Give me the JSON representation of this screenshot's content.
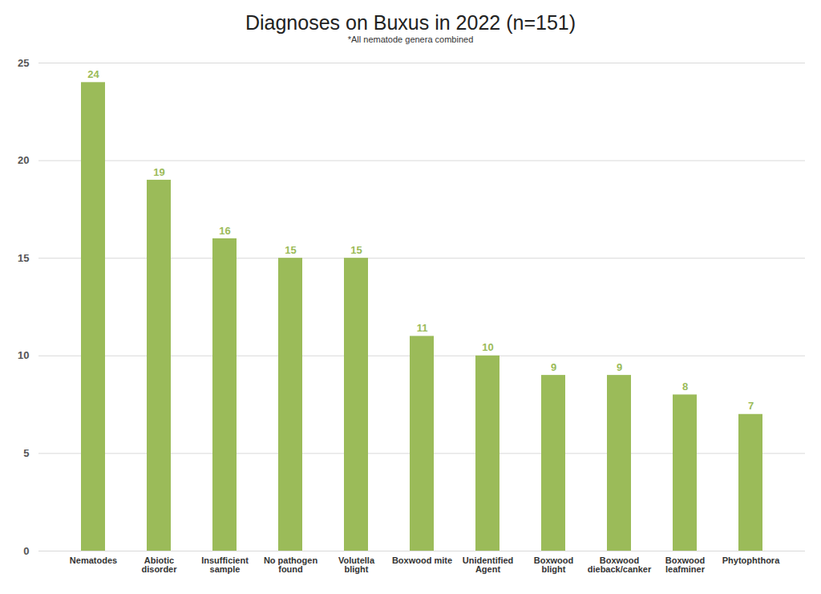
{
  "chart_data": {
    "type": "bar",
    "title": "Diagnoses on Buxus in 2022 (n=151)",
    "subtitle": "*All nematode genera combined",
    "categories": [
      "Nematodes",
      "Abiotic disorder",
      "Insufficient sample",
      "No pathogen found",
      "Volutella blight",
      "Boxwood mite",
      "Unidentified Agent",
      "Boxwood blight",
      "Boxwood dieback/canker",
      "Boxwood leafminer",
      "Phytophthora"
    ],
    "values": [
      24,
      19,
      16,
      15,
      15,
      11,
      10,
      9,
      9,
      8,
      7
    ],
    "color": "#9bbb59",
    "ylim": [
      0,
      25
    ],
    "yticks": [
      0,
      5,
      10,
      15,
      20,
      25
    ],
    "grid": true,
    "data_labels": true
  }
}
